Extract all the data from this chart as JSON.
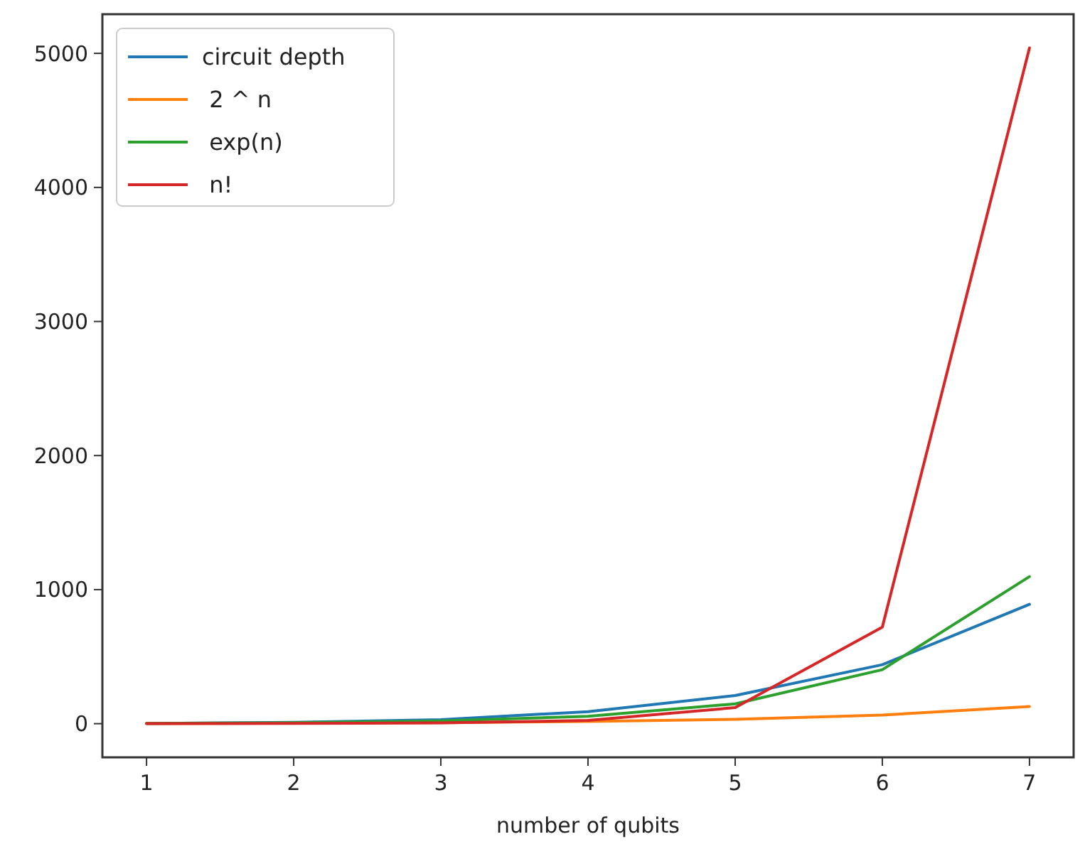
{
  "chart_data": {
    "type": "line",
    "xlabel": "number of qubits",
    "x": [
      1,
      2,
      3,
      4,
      5,
      6,
      7
    ],
    "series": [
      {
        "name": "circuit depth",
        "color": "#1f77b4",
        "values": [
          2,
          10,
          30,
          90,
          210,
          440,
          890
        ]
      },
      {
        "name": " 2 ^ n",
        "color": "#ff7f0e",
        "values": [
          2,
          4,
          8,
          16,
          32,
          64,
          128
        ]
      },
      {
        "name": " exp(n)",
        "color": "#2ca02c",
        "values": [
          2.7,
          7.4,
          20,
          55,
          148,
          403,
          1097
        ]
      },
      {
        "name": " n!",
        "color": "#d62728",
        "values": [
          1,
          2,
          6,
          24,
          120,
          720,
          5040
        ]
      }
    ],
    "xlim": [
      0.7,
      7.3
    ],
    "xticks": [
      1,
      2,
      3,
      4,
      5,
      6,
      7
    ],
    "ylim": [
      -251,
      5292
    ],
    "yticks": [
      0,
      1000,
      2000,
      3000,
      4000,
      5000
    ],
    "legend": "top left",
    "grid": false
  }
}
